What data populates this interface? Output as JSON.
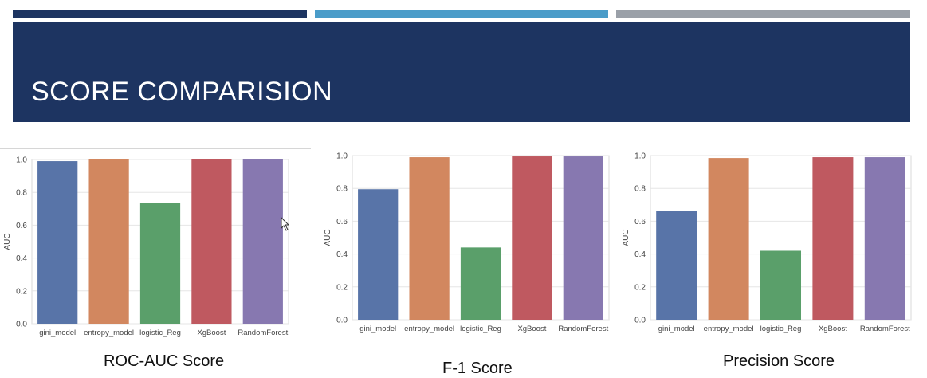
{
  "slide": {
    "title": "SCORE COMPARISION",
    "colors": {
      "band": "#1d3461",
      "strip_dark": "#1d3461",
      "strip_mid": "#4a9cc9",
      "strip_grey": "#9aa0a8"
    }
  },
  "chart_data": [
    {
      "type": "bar",
      "categories": [
        "gini_model",
        "entropy_model",
        "logistic_Reg",
        "XgBoost",
        "RandomForest"
      ],
      "values": [
        0.99,
        1.0,
        0.735,
        1.0,
        1.0
      ],
      "ylabel": "AUC",
      "ylim": [
        0,
        1.0
      ],
      "yticks": [
        "0.0",
        "0.2",
        "0.4",
        "0.6",
        "0.8",
        "1.0"
      ],
      "colors": [
        "#5874a8",
        "#d2875f",
        "#5a9f6a",
        "#bf5960",
        "#8778b0"
      ],
      "caption": "ROC-AUC Score",
      "grid": true
    },
    {
      "type": "bar",
      "categories": [
        "gini_model",
        "entropy_model",
        "logistic_Reg",
        "XgBoost",
        "RandomForest"
      ],
      "values": [
        0.795,
        0.99,
        0.44,
        0.995,
        0.995
      ],
      "ylabel": "AUC",
      "ylim": [
        0,
        1.0
      ],
      "yticks": [
        "0.0",
        "0.2",
        "0.4",
        "0.6",
        "0.8",
        "1.0"
      ],
      "colors": [
        "#5874a8",
        "#d2875f",
        "#5a9f6a",
        "#bf5960",
        "#8778b0"
      ],
      "caption": "F-1 Score",
      "grid": true
    },
    {
      "type": "bar",
      "categories": [
        "gini_model",
        "entropy_model",
        "logistic_Reg",
        "XgBoost",
        "RandomForest"
      ],
      "values": [
        0.665,
        0.985,
        0.42,
        0.99,
        0.99
      ],
      "ylabel": "AUC",
      "ylim": [
        0,
        1.0
      ],
      "yticks": [
        "0.0",
        "0.2",
        "0.4",
        "0.6",
        "0.8",
        "1.0"
      ],
      "colors": [
        "#5874a8",
        "#d2875f",
        "#5a9f6a",
        "#bf5960",
        "#8778b0"
      ],
      "caption": "Precision Score",
      "grid": true
    }
  ]
}
